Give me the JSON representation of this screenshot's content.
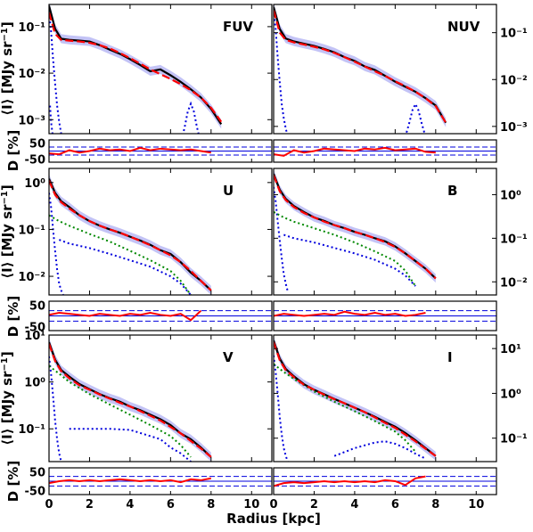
{
  "figure": {
    "xlabel": "Radius [kpc]",
    "ylabel_main_text": "⟨I⟩ [MJy sr",
    "ylabel_main_exp": "−1",
    "ylabel_resid": "D [%]",
    "xticks": [
      0,
      2,
      4,
      6,
      8,
      10
    ],
    "xlim": [
      0,
      11
    ],
    "resid_yticks": [
      "50",
      "-50"
    ],
    "resid_ylim": [
      -70,
      70
    ],
    "resid_dashed": [
      25,
      -25
    ],
    "colors": {
      "observed": "#000000",
      "model": "#ff0000",
      "uncertainty": "#b8b8f5",
      "component_blue": "#0000dd",
      "component_green": "#008800",
      "reference_dashed": "#0000dd"
    }
  },
  "chart_data": [
    {
      "type": "line",
      "band": "FUV",
      "position": "top-left",
      "yscale": "log",
      "ylim": [
        0.0005,
        0.3
      ],
      "yticklabels": [
        "10⁻¹",
        "10⁻²",
        "10⁻³"
      ],
      "ytickvalues": [
        0.1,
        0.01,
        0.001
      ],
      "x": [
        0,
        0.3,
        0.6,
        1,
        1.5,
        2,
        2.5,
        3,
        3.5,
        4,
        4.5,
        5,
        5.5,
        6,
        6.5,
        7,
        7.5,
        8,
        8.5
      ],
      "observed": [
        0.28,
        0.09,
        0.055,
        0.052,
        0.05,
        0.048,
        0.04,
        0.032,
        0.026,
        0.02,
        0.015,
        0.011,
        0.012,
        0.009,
        0.0065,
        0.0045,
        0.003,
        0.0017,
        0.0008
      ],
      "model": [
        0.2,
        0.07,
        0.052,
        0.05,
        0.048,
        0.045,
        0.04,
        0.034,
        0.027,
        0.021,
        0.016,
        0.012,
        0.0095,
        0.0075,
        0.0058,
        0.0043,
        0.003,
        0.0018,
        0.0009
      ],
      "components": [
        {
          "color": "blue",
          "x": [
            0,
            0.1,
            0.2,
            0.3,
            0.4,
            0.5,
            0.6,
            0.7
          ],
          "y": [
            0.2,
            0.08,
            0.02,
            0.006,
            0.002,
            0.0009,
            0.0005,
            0.0003
          ]
        },
        {
          "color": "blue",
          "x": [
            0.05,
            0.1,
            0.15,
            0.2
          ],
          "y": [
            0.002,
            0.0009,
            0.0006,
            0.0004
          ]
        },
        {
          "color": "blue",
          "x": [
            6.5,
            6.7,
            6.85,
            7.0,
            7.15,
            7.3,
            7.5
          ],
          "y": [
            0.0003,
            0.0007,
            0.0015,
            0.0022,
            0.0015,
            0.0007,
            0.0003
          ]
        }
      ],
      "residual_x": [
        0,
        0.5,
        1,
        1.5,
        2,
        2.5,
        3,
        3.5,
        4,
        4.5,
        5,
        5.5,
        6,
        6.5,
        7,
        7.5,
        8
      ],
      "residual": [
        -15,
        -20,
        5,
        -10,
        0,
        15,
        5,
        10,
        0,
        20,
        5,
        15,
        10,
        5,
        10,
        0,
        -10
      ]
    },
    {
      "type": "line",
      "band": "NUV",
      "position": "top-right",
      "yscale": "log",
      "ylim": [
        0.0007,
        0.4
      ],
      "yticklabels": [
        "10⁻¹",
        "10⁻²",
        "10⁻³"
      ],
      "ytickvalues": [
        0.1,
        0.01,
        0.001
      ],
      "x": [
        0,
        0.3,
        0.6,
        1,
        1.5,
        2,
        2.5,
        3,
        3.5,
        4,
        4.5,
        5,
        5.5,
        6,
        6.5,
        7,
        7.5,
        8,
        8.5
      ],
      "observed": [
        0.35,
        0.12,
        0.075,
        0.065,
        0.058,
        0.052,
        0.045,
        0.038,
        0.03,
        0.025,
        0.019,
        0.016,
        0.012,
        0.009,
        0.007,
        0.0055,
        0.004,
        0.0028,
        0.0012
      ],
      "model": [
        0.3,
        0.1,
        0.07,
        0.062,
        0.056,
        0.05,
        0.044,
        0.037,
        0.03,
        0.024,
        0.019,
        0.015,
        0.012,
        0.0092,
        0.0072,
        0.0055,
        0.004,
        0.0027,
        0.0012
      ],
      "components": [
        {
          "color": "blue",
          "x": [
            0,
            0.1,
            0.2,
            0.3,
            0.4,
            0.5,
            0.6,
            0.7
          ],
          "y": [
            0.3,
            0.12,
            0.03,
            0.009,
            0.003,
            0.0015,
            0.0009,
            0.0006
          ]
        },
        {
          "color": "blue",
          "x": [
            6.5,
            6.7,
            6.85,
            7.0,
            7.15,
            7.3,
            7.5
          ],
          "y": [
            0.0006,
            0.0012,
            0.0022,
            0.003,
            0.0022,
            0.0012,
            0.0006
          ]
        }
      ],
      "residual_x": [
        0,
        0.5,
        1,
        1.5,
        2,
        2.5,
        3,
        3.5,
        4,
        4.5,
        5,
        5.5,
        6,
        6.5,
        7,
        7.5,
        8
      ],
      "residual": [
        -20,
        -30,
        5,
        -10,
        0,
        15,
        10,
        5,
        0,
        15,
        10,
        20,
        5,
        10,
        15,
        -5,
        -10
      ]
    },
    {
      "type": "line",
      "band": "U",
      "position": "middle-left",
      "yscale": "log",
      "ylim": [
        0.004,
        2
      ],
      "yticklabels": [
        "10⁰",
        "10⁻¹",
        "10⁻²"
      ],
      "ytickvalues": [
        1,
        0.1,
        0.01
      ],
      "x": [
        0,
        0.3,
        0.6,
        1,
        1.5,
        2,
        2.5,
        3,
        3.5,
        4,
        4.5,
        5,
        5.5,
        6,
        6.5,
        7,
        7.5,
        8
      ],
      "observed": [
        1.2,
        0.6,
        0.4,
        0.3,
        0.2,
        0.15,
        0.12,
        0.1,
        0.085,
        0.07,
        0.058,
        0.047,
        0.036,
        0.03,
        0.02,
        0.012,
        0.008,
        0.005
      ],
      "model": [
        1.1,
        0.55,
        0.38,
        0.28,
        0.2,
        0.15,
        0.12,
        0.1,
        0.085,
        0.07,
        0.057,
        0.046,
        0.036,
        0.028,
        0.02,
        0.013,
        0.008,
        0.005
      ],
      "components": [
        {
          "color": "blue",
          "x": [
            0,
            0.1,
            0.2,
            0.3,
            0.4,
            0.5,
            0.6,
            0.7
          ],
          "y": [
            0.6,
            0.3,
            0.1,
            0.035,
            0.014,
            0.007,
            0.005,
            0.004
          ]
        },
        {
          "color": "green",
          "x": [
            0,
            0.5,
            1,
            2,
            3,
            4,
            5,
            6,
            6.5,
            7
          ],
          "y": [
            0.2,
            0.15,
            0.12,
            0.08,
            0.055,
            0.035,
            0.022,
            0.013,
            0.008,
            0.004
          ]
        },
        {
          "color": "blue",
          "x": [
            0.5,
            1,
            2,
            3,
            4,
            5,
            6,
            6.5,
            7
          ],
          "y": [
            0.06,
            0.05,
            0.04,
            0.03,
            0.022,
            0.016,
            0.01,
            0.007,
            0.004
          ]
        }
      ],
      "residual_x": [
        0,
        0.5,
        1,
        1.5,
        2,
        2.5,
        3,
        3.5,
        4,
        4.5,
        5,
        5.5,
        6,
        6.5,
        7,
        7.5
      ],
      "residual": [
        5,
        15,
        10,
        5,
        0,
        10,
        5,
        0,
        10,
        5,
        15,
        5,
        0,
        10,
        -20,
        25
      ]
    },
    {
      "type": "line",
      "band": "B",
      "position": "middle-right",
      "yscale": "log",
      "ylim": [
        0.005,
        4
      ],
      "yticklabels": [
        "10⁰",
        "10⁻¹",
        "10⁻²"
      ],
      "ytickvalues": [
        1,
        0.1,
        0.01
      ],
      "x": [
        0,
        0.3,
        0.6,
        1,
        1.5,
        2,
        2.5,
        3,
        3.5,
        4,
        4.5,
        5,
        5.5,
        6,
        6.5,
        7,
        7.5,
        8
      ],
      "observed": [
        3,
        1.3,
        0.8,
        0.55,
        0.4,
        0.3,
        0.25,
        0.2,
        0.17,
        0.14,
        0.12,
        0.1,
        0.085,
        0.065,
        0.045,
        0.03,
        0.02,
        0.012
      ],
      "model": [
        2.8,
        1.2,
        0.75,
        0.52,
        0.38,
        0.3,
        0.24,
        0.2,
        0.17,
        0.14,
        0.12,
        0.1,
        0.082,
        0.063,
        0.045,
        0.03,
        0.02,
        0.012
      ],
      "components": [
        {
          "color": "blue",
          "x": [
            0,
            0.1,
            0.2,
            0.3,
            0.4,
            0.5,
            0.6,
            0.7
          ],
          "y": [
            1.5,
            0.7,
            0.25,
            0.09,
            0.035,
            0.015,
            0.009,
            0.006
          ]
        },
        {
          "color": "green",
          "x": [
            0,
            0.5,
            1,
            2,
            3,
            4,
            5,
            6,
            6.5,
            7
          ],
          "y": [
            0.4,
            0.3,
            0.24,
            0.17,
            0.12,
            0.08,
            0.05,
            0.03,
            0.018,
            0.008
          ]
        },
        {
          "color": "blue",
          "x": [
            0.5,
            1,
            2,
            3,
            4,
            5,
            6,
            6.5,
            7
          ],
          "y": [
            0.12,
            0.1,
            0.08,
            0.06,
            0.045,
            0.032,
            0.02,
            0.014,
            0.008
          ]
        }
      ],
      "residual_x": [
        0,
        0.5,
        1,
        1.5,
        2,
        2.5,
        3,
        3.5,
        4,
        4.5,
        5,
        5.5,
        6,
        6.5,
        7,
        7.5
      ],
      "residual": [
        0,
        10,
        5,
        0,
        5,
        10,
        5,
        20,
        10,
        5,
        15,
        5,
        10,
        0,
        5,
        15
      ]
    },
    {
      "type": "line",
      "band": "V",
      "position": "bottom-left",
      "yscale": "log",
      "ylim": [
        0.02,
        10
      ],
      "yticklabels": [
        "10¹",
        "10⁰",
        "10⁻¹"
      ],
      "ytickvalues": [
        10,
        1,
        0.1
      ],
      "x": [
        0,
        0.3,
        0.6,
        1,
        1.5,
        2,
        2.5,
        3,
        3.5,
        4,
        4.5,
        5,
        5.5,
        6,
        6.5,
        7,
        7.5,
        8
      ],
      "observed": [
        7,
        3,
        1.8,
        1.3,
        0.9,
        0.7,
        0.55,
        0.45,
        0.38,
        0.3,
        0.25,
        0.2,
        0.16,
        0.12,
        0.08,
        0.06,
        0.04,
        0.025
      ],
      "model": [
        6.5,
        2.8,
        1.7,
        1.2,
        0.85,
        0.68,
        0.54,
        0.44,
        0.36,
        0.3,
        0.24,
        0.19,
        0.15,
        0.11,
        0.08,
        0.055,
        0.038,
        0.025
      ],
      "components": [
        {
          "color": "blue",
          "x": [
            0,
            0.1,
            0.2,
            0.3,
            0.4,
            0.5,
            0.6,
            0.7
          ],
          "y": [
            3.5,
            1.5,
            0.5,
            0.15,
            0.06,
            0.03,
            0.02,
            0.015
          ]
        },
        {
          "color": "green",
          "x": [
            0,
            0.5,
            1,
            2,
            3,
            4,
            5,
            6,
            6.5,
            7
          ],
          "y": [
            2.2,
            1.5,
            1.0,
            0.55,
            0.33,
            0.2,
            0.12,
            0.07,
            0.045,
            0.025
          ]
        },
        {
          "color": "blue",
          "x": [
            1,
            2,
            3,
            4,
            5,
            5.5,
            6,
            6.5,
            7,
            7.5
          ],
          "y": [
            0.1,
            0.1,
            0.1,
            0.095,
            0.07,
            0.06,
            0.04,
            0.03,
            0.02,
            0.014
          ]
        }
      ],
      "residual_x": [
        0,
        0.5,
        1,
        1.5,
        2,
        2.5,
        3,
        3.5,
        4,
        4.5,
        5,
        5.5,
        6,
        6.5,
        7,
        7.5,
        8
      ],
      "residual": [
        -10,
        0,
        5,
        0,
        5,
        0,
        5,
        10,
        5,
        0,
        5,
        0,
        5,
        -5,
        10,
        5,
        15
      ]
    },
    {
      "type": "line",
      "band": "I",
      "position": "bottom-right",
      "yscale": "log",
      "ylim": [
        0.03,
        20
      ],
      "yticklabels": [
        "10¹",
        "10⁰",
        "10⁻¹"
      ],
      "ytickvalues": [
        10,
        1,
        0.1
      ],
      "x": [
        0,
        0.3,
        0.6,
        1,
        1.5,
        2,
        2.5,
        3,
        3.5,
        4,
        4.5,
        5,
        5.5,
        6,
        6.5,
        7,
        7.5,
        8
      ],
      "observed": [
        15,
        6,
        3.5,
        2.4,
        1.6,
        1.2,
        0.95,
        0.75,
        0.6,
        0.48,
        0.38,
        0.3,
        0.23,
        0.18,
        0.13,
        0.09,
        0.06,
        0.04
      ],
      "model": [
        14,
        5.5,
        3.3,
        2.3,
        1.55,
        1.2,
        0.93,
        0.74,
        0.6,
        0.48,
        0.38,
        0.29,
        0.22,
        0.17,
        0.12,
        0.085,
        0.058,
        0.04
      ],
      "components": [
        {
          "color": "blue",
          "x": [
            0,
            0.1,
            0.2,
            0.3,
            0.4,
            0.5,
            0.6,
            0.7
          ],
          "y": [
            7,
            3,
            1,
            0.3,
            0.12,
            0.06,
            0.04,
            0.03
          ]
        },
        {
          "color": "green",
          "x": [
            0,
            0.5,
            1,
            2,
            3,
            4,
            5,
            6,
            6.5,
            7
          ],
          "y": [
            4.5,
            3,
            2.1,
            1.1,
            0.65,
            0.4,
            0.24,
            0.14,
            0.09,
            0.05
          ]
        },
        {
          "color": "blue",
          "x": [
            3,
            4,
            5,
            5.5,
            6,
            6.5,
            7,
            7.5
          ],
          "y": [
            0.04,
            0.06,
            0.08,
            0.085,
            0.075,
            0.06,
            0.045,
            0.035
          ]
        }
      ],
      "residual_x": [
        0,
        0.5,
        1,
        1.5,
        2,
        2.5,
        3,
        3.5,
        4,
        4.5,
        5,
        5.5,
        6,
        6.5,
        7,
        7.5
      ],
      "residual": [
        -25,
        -10,
        -5,
        -10,
        -5,
        0,
        -5,
        0,
        -5,
        0,
        -5,
        5,
        0,
        -20,
        15,
        25
      ]
    }
  ]
}
